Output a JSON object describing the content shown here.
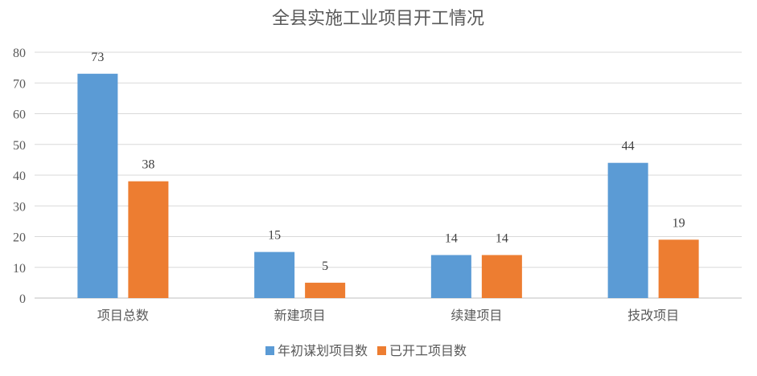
{
  "chart_data": {
    "type": "bar",
    "title": "全县实施工业项目开工情况",
    "categories": [
      "项目总数",
      "新建项目",
      "续建项目",
      "技改项目"
    ],
    "series": [
      {
        "name": "年初谋划项目数",
        "values": [
          73,
          15,
          14,
          44
        ],
        "color": "#5B9BD5"
      },
      {
        "name": "已开工项目数",
        "values": [
          38,
          5,
          14,
          19
        ],
        "color": "#ED7D31"
      }
    ],
    "ylim": [
      0,
      80
    ],
    "yticks": [
      0,
      10,
      20,
      30,
      40,
      50,
      60,
      70,
      80
    ],
    "grid": true,
    "legend": "bottom",
    "data_labels": true
  }
}
